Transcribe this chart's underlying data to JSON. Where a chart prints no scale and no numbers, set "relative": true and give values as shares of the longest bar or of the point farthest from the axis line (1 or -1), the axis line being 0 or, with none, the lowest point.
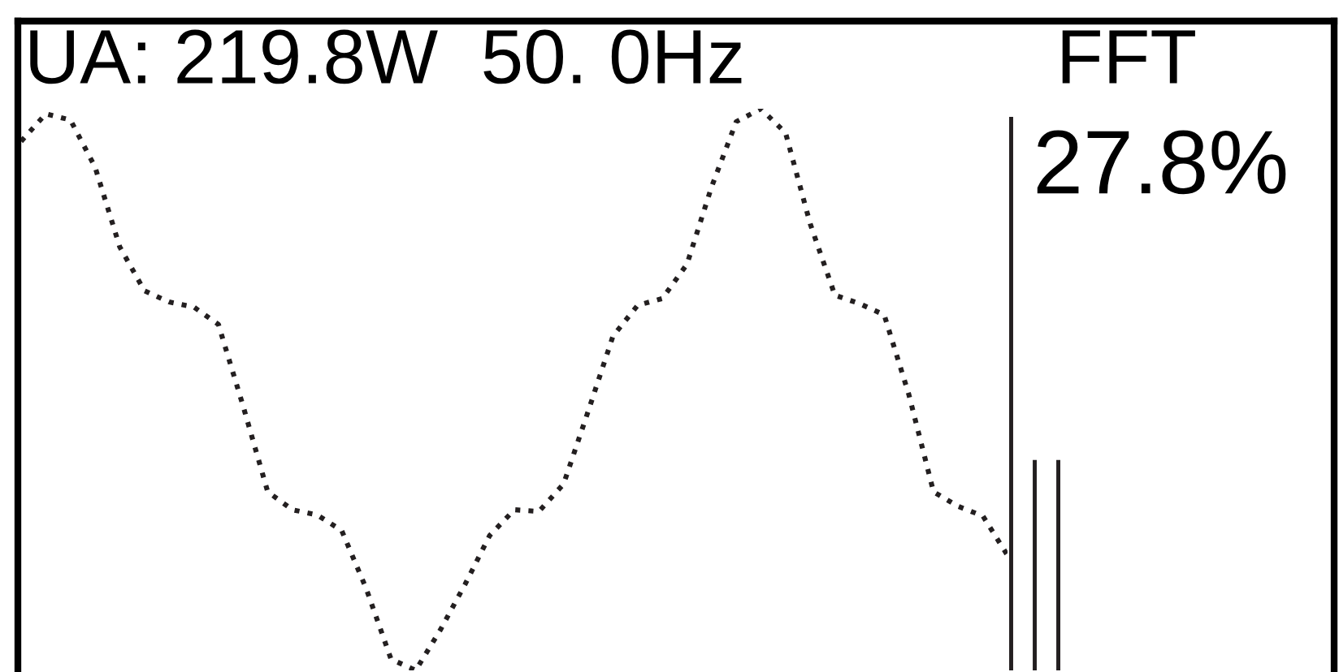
{
  "chart_data": [
    {
      "type": "line",
      "title": "UA: 219.8W  50. 0Hz",
      "relative": true,
      "line_style": "dotted",
      "marker": "none",
      "categories": [
        null,
        null,
        null,
        null,
        null,
        null,
        null,
        null,
        null,
        null,
        null,
        null,
        null,
        null,
        null,
        null,
        null,
        null,
        null,
        null,
        null,
        null,
        null,
        null,
        null,
        null,
        null,
        null,
        null,
        null,
        null,
        null,
        null,
        null,
        null,
        null,
        null,
        null,
        null,
        null,
        null
      ],
      "series": [
        {
          "color": "#231f20",
          "values": [
            0.942,
            0.991,
            0.98,
            0.896,
            0.754,
            0.676,
            0.656,
            0.647,
            0.616,
            0.471,
            0.318,
            0.286,
            0.277,
            0.249,
            0.145,
            0.02,
            0,
            0.072,
            0.153,
            0.24,
            0.286,
            0.283,
            0.332,
            0.462,
            0.595,
            0.65,
            0.662,
            0.723,
            0.861,
            0.977,
            1,
            0.957,
            0.795,
            0.668,
            0.653,
            0.633,
            0.491,
            0.318,
            0.292,
            0.275,
            0.205
          ]
        }
      ]
    },
    {
      "type": "bar",
      "title": "FFT",
      "relative": true,
      "annotations": [
        "27.8%"
      ],
      "categories": [
        null,
        null,
        null
      ],
      "series": [
        {
          "color": "#231f20",
          "values": [
            1,
            0.38,
            0.38
          ]
        }
      ]
    }
  ]
}
